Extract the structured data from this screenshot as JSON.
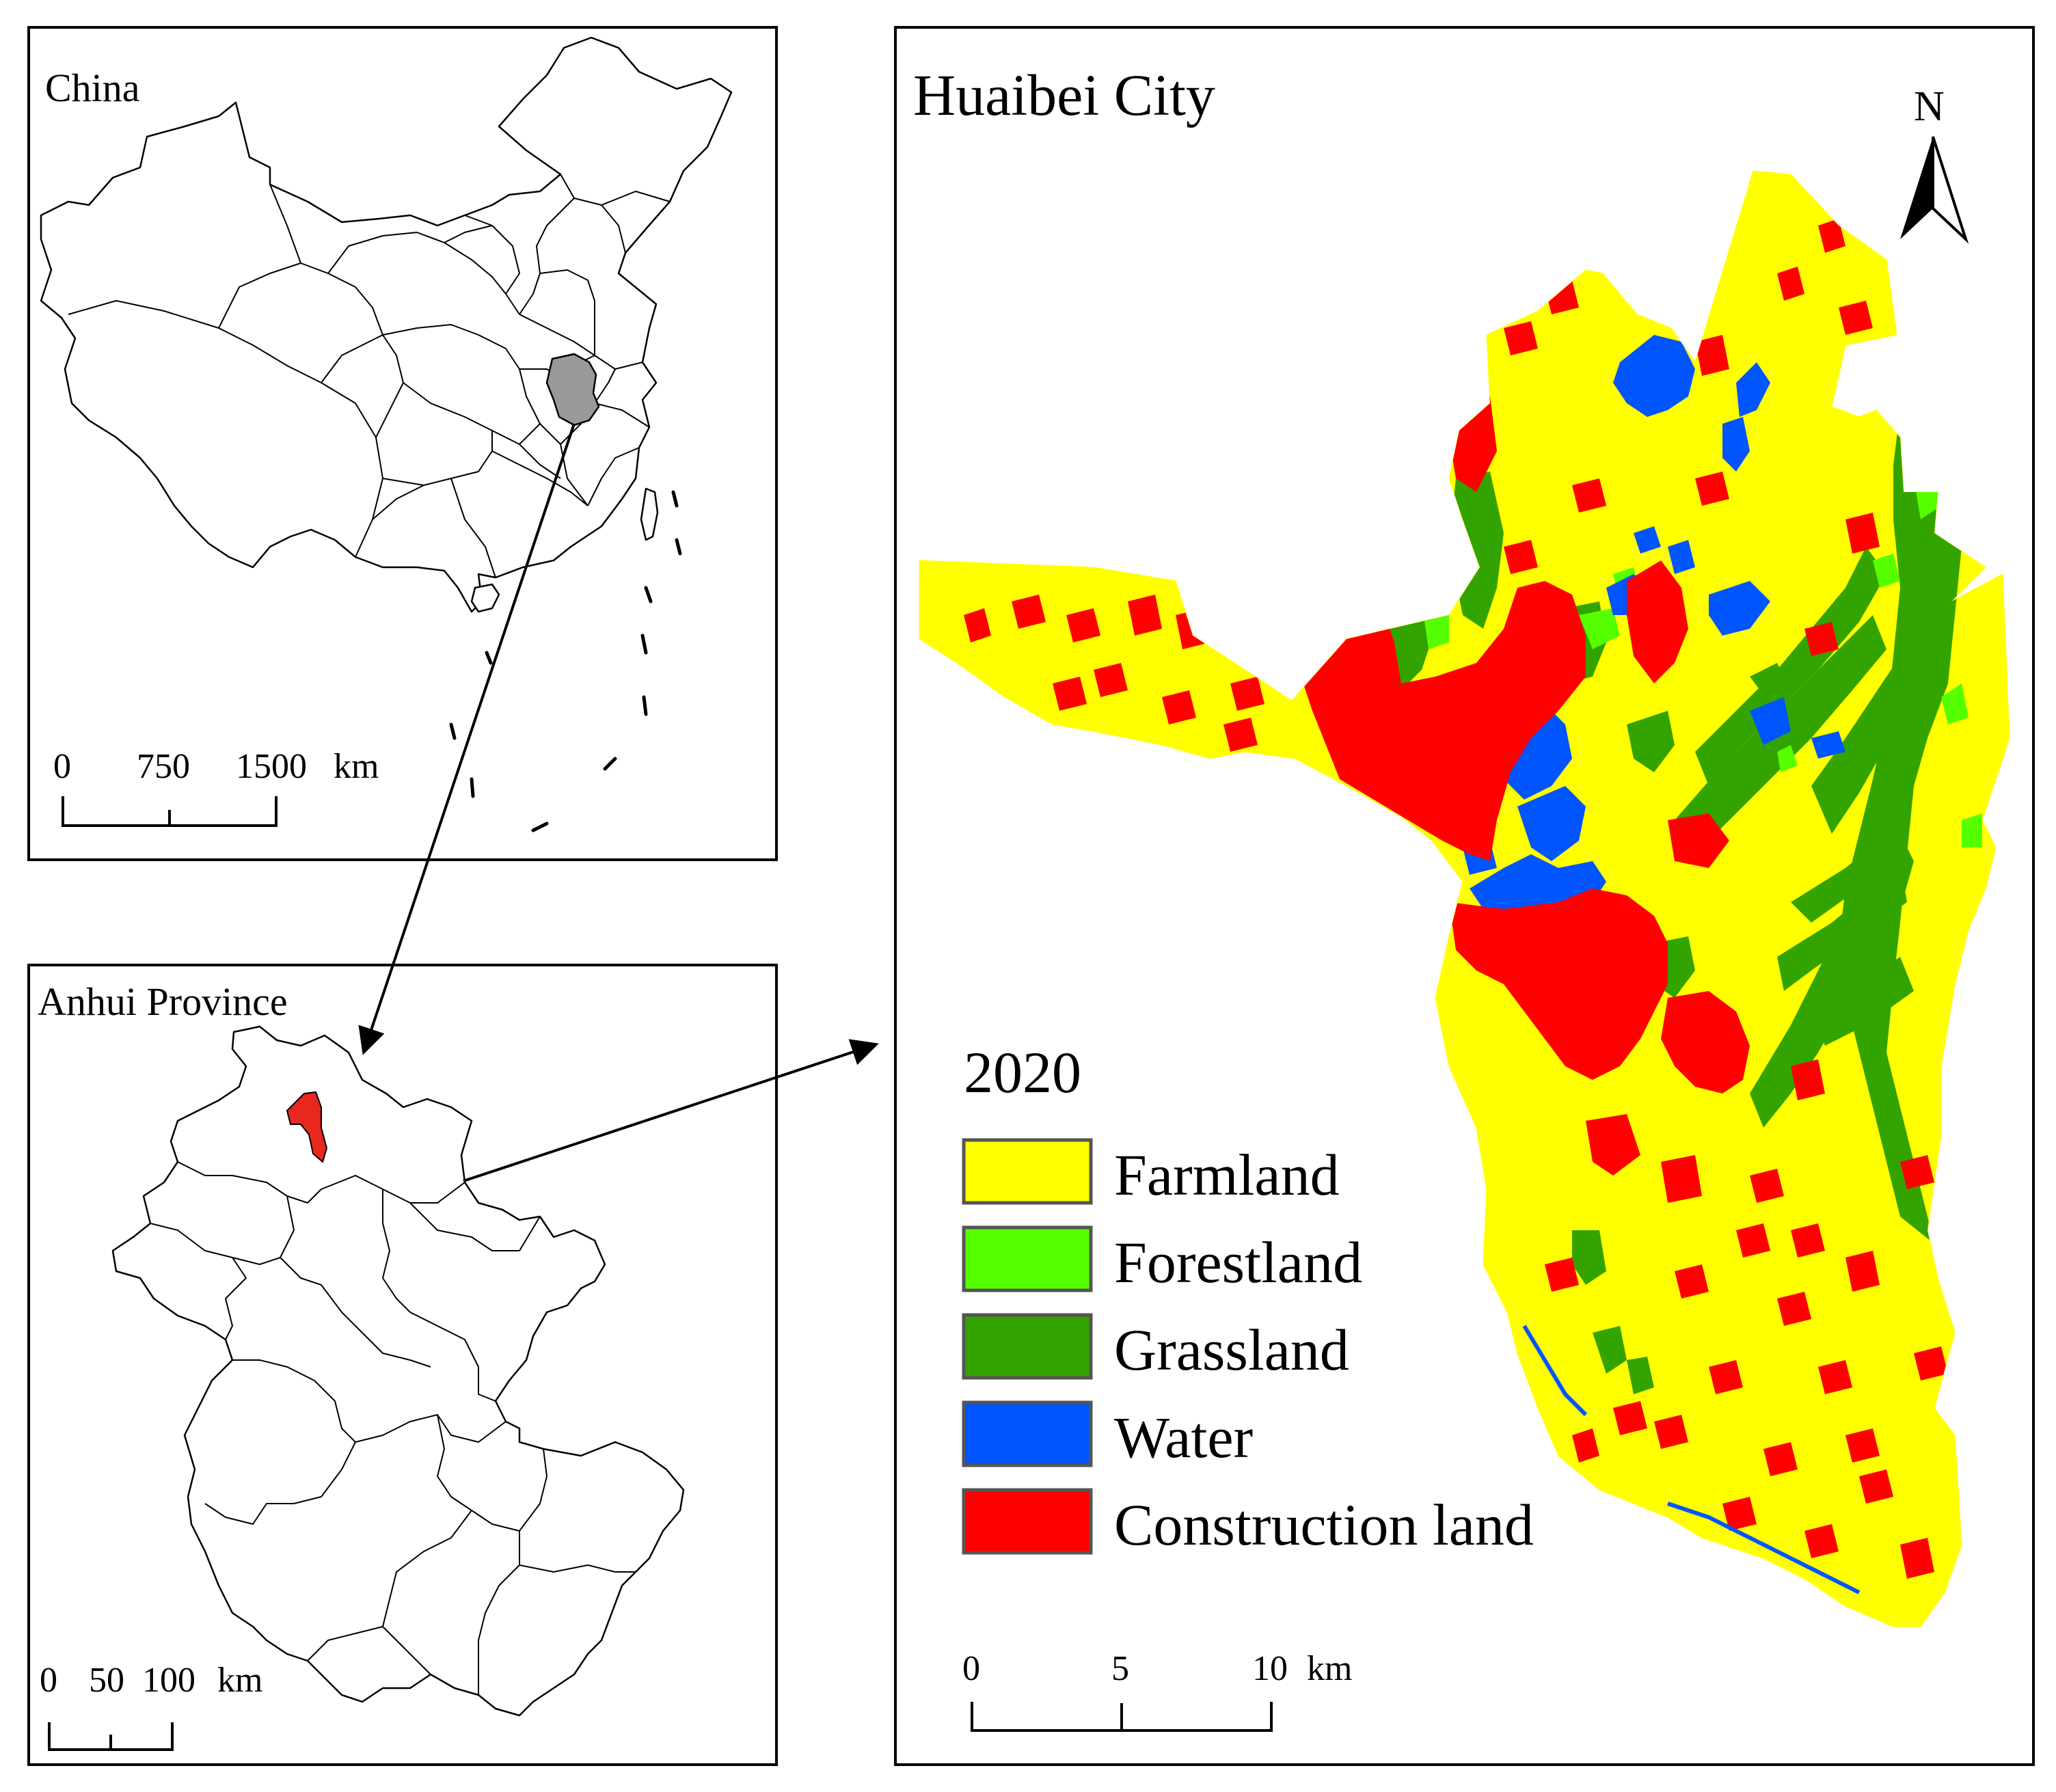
{
  "panels": {
    "china": {
      "title": "China",
      "scale": {
        "ticks": [
          "0",
          "750",
          "1500"
        ],
        "unit": "km"
      }
    },
    "anhui": {
      "title": "Anhui Province",
      "scale": {
        "ticks": [
          "0",
          "50",
          "100"
        ],
        "unit": "km"
      }
    },
    "huaibei": {
      "title": "Huaibei City",
      "north_arrow": "N",
      "scale": {
        "ticks": [
          "0",
          "5",
          "10"
        ],
        "unit": "km"
      },
      "legend": {
        "year": "2020",
        "items": [
          {
            "label": "Farmland",
            "color": "#FFFF00"
          },
          {
            "label": "Forestland",
            "color": "#55FF00"
          },
          {
            "label": "Grassland",
            "color": "#33A300"
          },
          {
            "label": "Water",
            "color": "#0055FF"
          },
          {
            "label": "Construction land",
            "color": "#FF0000"
          }
        ]
      }
    }
  },
  "colors": {
    "anhui_highlight": "#999999",
    "huaibei_highlight": "#E8271F"
  }
}
